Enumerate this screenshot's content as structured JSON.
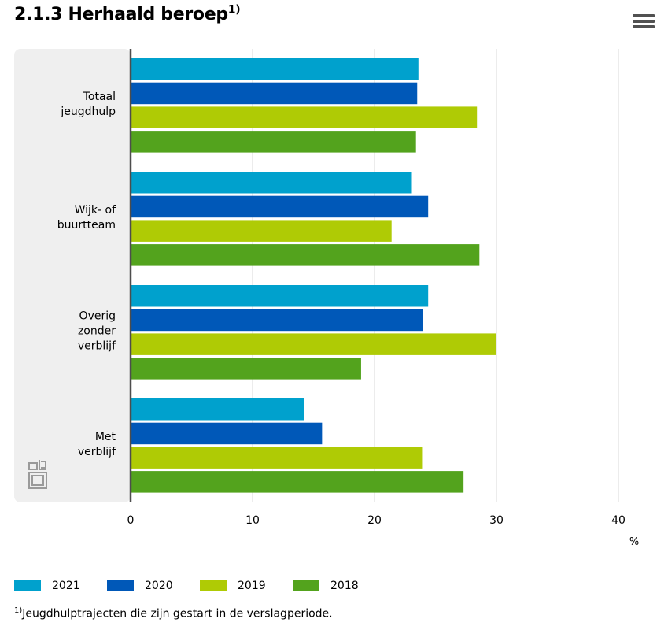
{
  "header": {
    "title": "2.1.3 Herhaald beroep",
    "title_sup": "1)",
    "menu_icon": "hamburger-menu-icon"
  },
  "chart_data": {
    "type": "bar",
    "orientation": "horizontal",
    "categories": [
      [
        "Totaal",
        "jeugdhulp"
      ],
      [
        "Wijk- of",
        "buurtteam"
      ],
      [
        "Overig",
        "zonder",
        "verblijf"
      ],
      [
        "Met",
        "verblijf"
      ]
    ],
    "series": [
      {
        "name": "2021",
        "color": "#00a1cd",
        "values": [
          23.6,
          23.0,
          24.4,
          14.2
        ]
      },
      {
        "name": "2020",
        "color": "#0058b8",
        "values": [
          23.5,
          24.4,
          24.0,
          15.7
        ]
      },
      {
        "name": "2019",
        "color": "#afcb05",
        "values": [
          28.4,
          21.4,
          30.0,
          23.9
        ]
      },
      {
        "name": "2018",
        "color": "#53a31d",
        "values": [
          23.4,
          28.6,
          18.9,
          27.3
        ]
      }
    ],
    "xlim": [
      0,
      40
    ],
    "xticks": [
      0,
      10,
      20,
      30,
      40
    ],
    "xlabel": "%",
    "grid": true,
    "legend_position": "bottom-left"
  },
  "footnote": {
    "sup": "1)",
    "text": "Jeugdhulptrajecten die zijn gestart in de verslagperiode."
  }
}
